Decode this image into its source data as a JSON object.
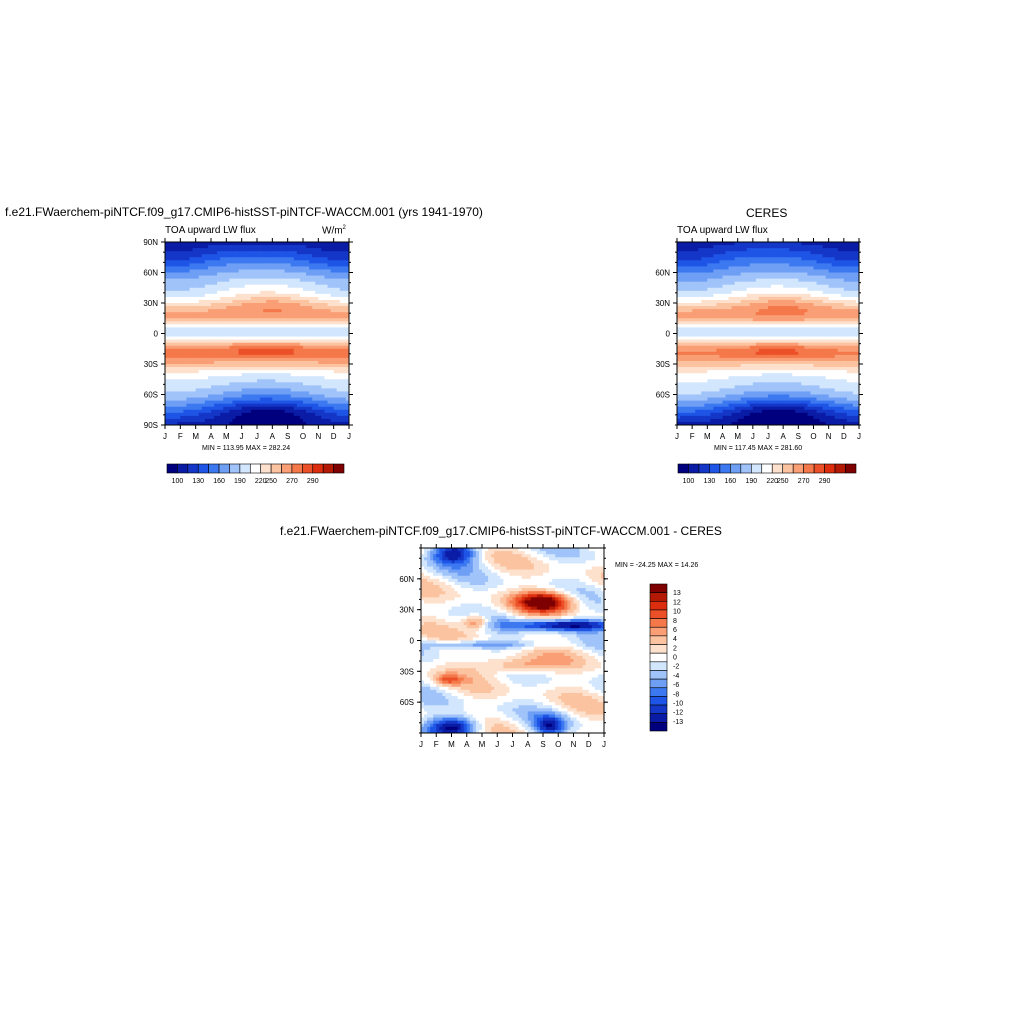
{
  "panels": {
    "p1": {
      "title": "f.e21.FWaerchem-piNTCF.f09_g17.CMIP6-histSST-piNTCF-WACCM.001 (yrs 1941-1970)",
      "left_label": "TOA upward LW flux",
      "units_base": "W/m",
      "units_sup": "2",
      "minmax": "MIN = 113.95 MAX = 282.24"
    },
    "p2": {
      "title": "CERES",
      "left_label": "TOA upward LW flux",
      "minmax": "MIN = 117.45 MAX = 281.60"
    },
    "p3": {
      "title": "f.e21.FWaerchem-piNTCF.f09_g17.CMIP6-histSST-piNTCF-WACCM.001 - CERES",
      "minmax": "MIN = -24.25 MAX =  14.26"
    }
  },
  "colorbar_main": {
    "colors": [
      "#00007e",
      "#0a1ca6",
      "#1437c8",
      "#1e55e6",
      "#3c78f0",
      "#6e9ff5",
      "#a0c3fa",
      "#d2e6fd",
      "#ffffff",
      "#fde1cd",
      "#fbc3a0",
      "#f99e75",
      "#f4784a",
      "#ec5028",
      "#dc2d0f",
      "#b41905",
      "#7e0000"
    ],
    "labels": [
      "100",
      "130",
      "160",
      "190",
      "220",
      "250",
      "270",
      "290"
    ]
  },
  "colorbar_diff": {
    "colors": [
      "#00007e",
      "#0a1ca6",
      "#1437c8",
      "#1e55e6",
      "#3c78f0",
      "#6e9ff5",
      "#a0c3fa",
      "#d2e6fd",
      "#ffffff",
      "#fde1cd",
      "#fbc3a0",
      "#f99e75",
      "#f4784a",
      "#ec5028",
      "#dc2d0f",
      "#b41905",
      "#7e0000"
    ],
    "labels": [
      "13",
      "12",
      "10",
      "8",
      "6",
      "4",
      "2",
      "0",
      "-2",
      "-4",
      "-6",
      "-8",
      "-10",
      "-12",
      "-13"
    ]
  },
  "chart_data": [
    {
      "type": "heatmap",
      "title": "f.e21.FWaerchem-piNTCF.f09_g17.CMIP6-histSST-piNTCF-WACCM.001 (yrs 1941-1970)",
      "variable": "TOA upward LW flux",
      "units": "W/m2",
      "x_ticks": [
        "J",
        "F",
        "M",
        "A",
        "M",
        "J",
        "J",
        "A",
        "S",
        "O",
        "N",
        "D",
        "J"
      ],
      "y_ticks": [
        "90N",
        "60N",
        "30N",
        "0",
        "30S",
        "60S",
        "90S"
      ],
      "min": 113.95,
      "max": 282.24
    },
    {
      "type": "heatmap",
      "title": "CERES",
      "variable": "TOA upward LW flux",
      "x_ticks": [
        "J",
        "F",
        "M",
        "A",
        "M",
        "J",
        "J",
        "A",
        "S",
        "O",
        "N",
        "D",
        "J"
      ],
      "y_ticks": [
        "60N",
        "30N",
        "0",
        "30S",
        "60S"
      ],
      "min": 117.45,
      "max": 281.6
    },
    {
      "type": "heatmap",
      "title": "f.e21.FWaerchem-piNTCF.f09_g17.CMIP6-histSST-piNTCF-WACCM.001 - CERES",
      "x_ticks": [
        "J",
        "F",
        "M",
        "A",
        "M",
        "J",
        "J",
        "A",
        "S",
        "O",
        "N",
        "D",
        "J"
      ],
      "y_ticks": [
        "60N",
        "30N",
        "0",
        "30S",
        "60S"
      ],
      "min": -24.25,
      "max": 14.26
    }
  ]
}
